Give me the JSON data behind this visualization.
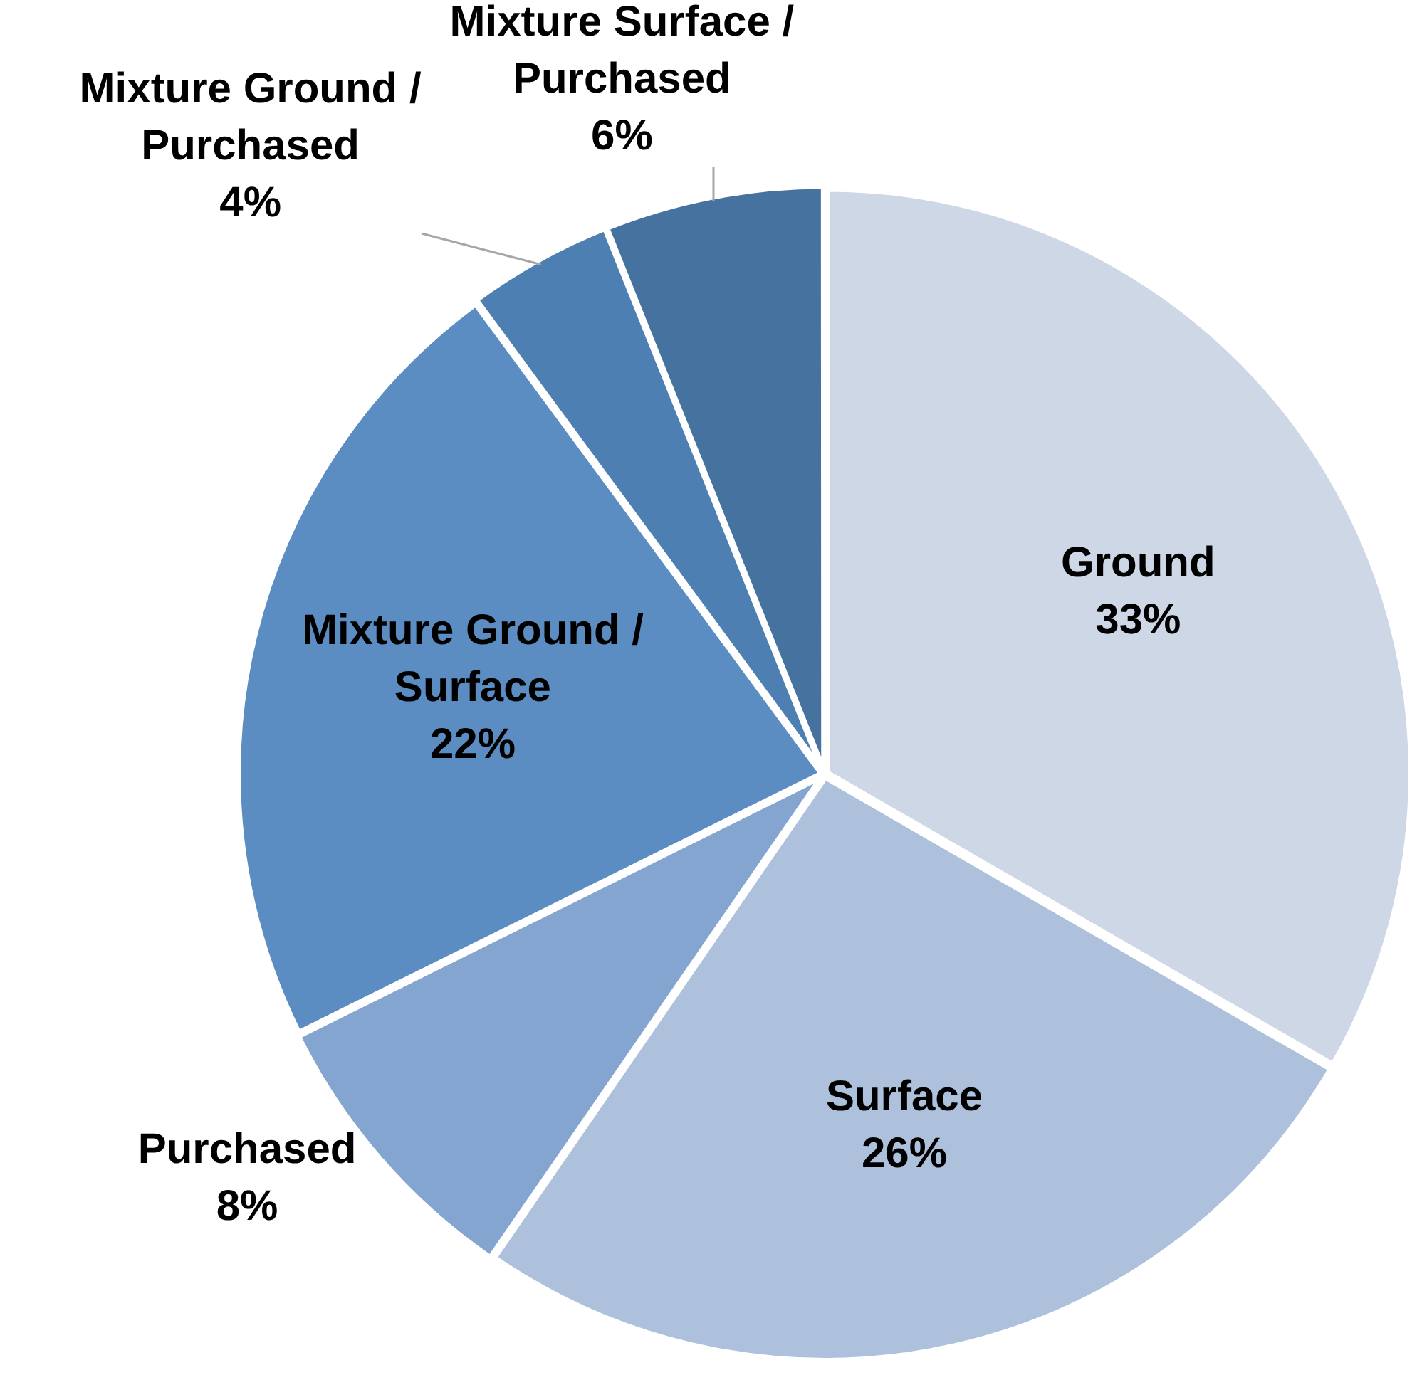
{
  "chart_data": {
    "type": "pie",
    "categories": [
      "Ground",
      "Surface",
      "Purchased",
      "Mixture Ground / Surface",
      "Mixture Ground / Purchased",
      "Mixture Surface / Purchased"
    ],
    "values": [
      33,
      26,
      8,
      22,
      4,
      6
    ],
    "colors": [
      "#cdd7e6",
      "#adc0dc",
      "#84a5cf",
      "#5b8cc2",
      "#4e7fb3",
      "#46729f"
    ],
    "value_labels": [
      "33%",
      "26%",
      "8%",
      "22%",
      "4%",
      "6%"
    ],
    "legend": false
  }
}
